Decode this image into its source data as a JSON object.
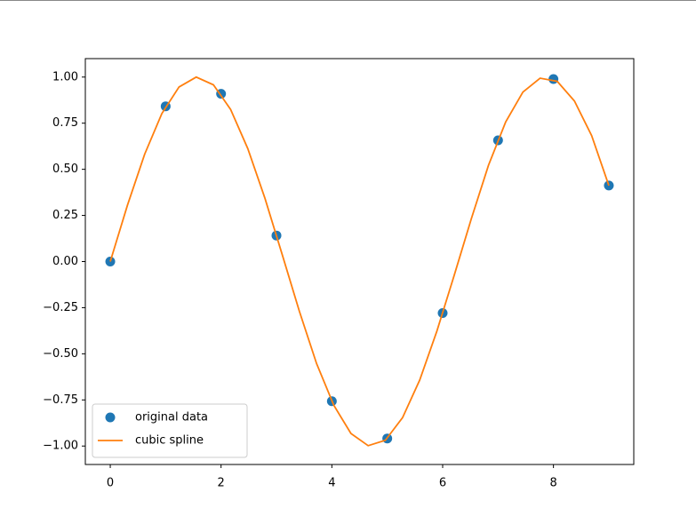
{
  "chart_data": {
    "type": "line",
    "xlim": [
      -0.45,
      9.45
    ],
    "ylim": [
      -1.1,
      1.1
    ],
    "xticks": [
      0,
      2,
      4,
      6,
      8
    ],
    "yticks": [
      {
        "value": -1,
        "label": "−1.00"
      },
      {
        "value": -0.75,
        "label": "−0.75"
      },
      {
        "value": -0.5,
        "label": "−0.50"
      },
      {
        "value": -0.25,
        "label": "−0.25"
      },
      {
        "value": 0,
        "label": "0.00"
      },
      {
        "value": 0.25,
        "label": "0.25"
      },
      {
        "value": 0.5,
        "label": "0.50"
      },
      {
        "value": 0.75,
        "label": "0.75"
      },
      {
        "value": 1,
        "label": "1.00"
      }
    ],
    "grid": false,
    "legend": "lower left",
    "series": [
      {
        "name": "original data",
        "type": "scatter",
        "color": "#1f77b4",
        "x": [
          0,
          1,
          2,
          3,
          4,
          5,
          6,
          7,
          8,
          9
        ],
        "values": [
          0,
          0.8415,
          0.9093,
          0.1411,
          -0.7568,
          -0.9589,
          -0.2794,
          0.657,
          0.9894,
          0.4121
        ]
      },
      {
        "name": "cubic spline",
        "type": "line",
        "color": "#ff7f0e",
        "x": [
          0,
          0.3103,
          0.6207,
          0.931,
          1.2414,
          1.5517,
          1.8621,
          2.1724,
          2.4828,
          2.7931,
          3.1034,
          3.4138,
          3.7241,
          4.0345,
          4.3448,
          4.6552,
          4.9655,
          5.2759,
          5.5862,
          5.8966,
          6.2069,
          6.5172,
          6.8276,
          7.1379,
          7.4483,
          7.7586,
          8.069,
          8.3793,
          8.6897,
          9
        ],
        "values": [
          0,
          0.3054,
          0.5816,
          0.8021,
          0.9462,
          0.9998,
          0.958,
          0.8246,
          0.6121,
          0.342,
          0.0382,
          -0.2697,
          -0.5529,
          -0.7788,
          -0.9322,
          -0.998,
          -0.969,
          -0.8465,
          -0.6422,
          -0.3764,
          -0.0762,
          0.2315,
          0.5219,
          0.7569,
          0.9186,
          0.9939,
          0.9766,
          0.87,
          0.6824,
          0.4121
        ]
      }
    ]
  }
}
